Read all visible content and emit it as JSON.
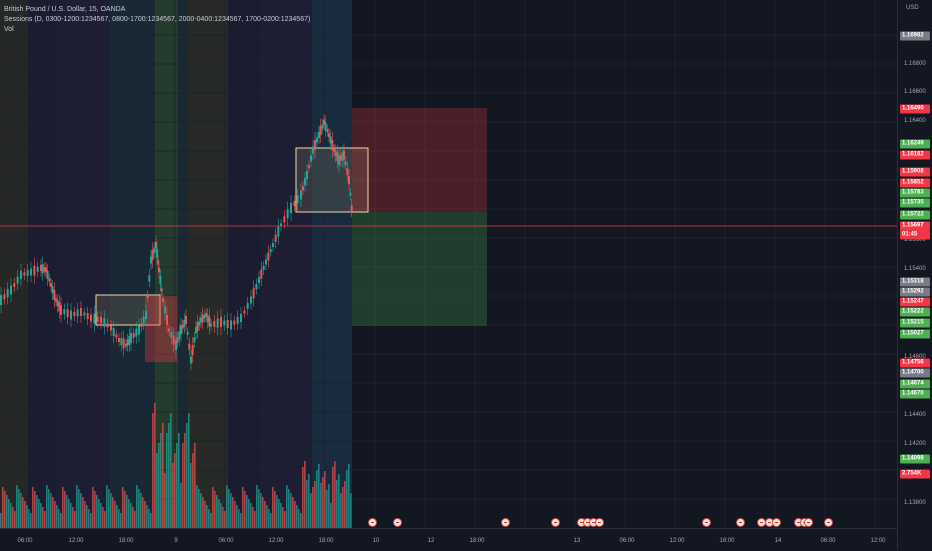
{
  "legend": {
    "line1": "British Pound / U.S. Dollar, 15, OANDA",
    "line2": "Sessions (D, 0300-1200:1234567, 0800-1700:1234567, 2000-0400:1234567, 1700-0200:1234567)",
    "line3": "Vol"
  },
  "price_axis": {
    "currency": "USD",
    "ticks": [
      "1.16800",
      "1.16600",
      "1.16400",
      "1.15600",
      "1.15400",
      "1.14800",
      "1.14400",
      "1.14200",
      "1.13800"
    ]
  },
  "badges": [
    {
      "text": "1.16982",
      "color": "#787b86"
    },
    {
      "text": "1.16490",
      "color": "#f23645"
    },
    {
      "text": "1.16249",
      "color": "#4caf50"
    },
    {
      "text": "1.16182",
      "color": "#f23645"
    },
    {
      "text": "1.15908",
      "color": "#f23645"
    },
    {
      "text": "1.15852",
      "color": "#f23645"
    },
    {
      "text": "1.15783",
      "color": "#4caf50"
    },
    {
      "text": "1.15735",
      "color": "#4caf50"
    },
    {
      "text": "1.15722",
      "color": "#4caf50"
    },
    {
      "text": "1.15697",
      "color": "#f23645"
    },
    {
      "text": "01:45",
      "color": "#f23645"
    },
    {
      "text": "1.15318",
      "color": "#787b86"
    },
    {
      "text": "1.15292",
      "color": "#787b86"
    },
    {
      "text": "1.15247",
      "color": "#f23645"
    },
    {
      "text": "1.15222",
      "color": "#4caf50"
    },
    {
      "text": "1.15215",
      "color": "#4caf50"
    },
    {
      "text": "1.15027",
      "color": "#4caf50"
    },
    {
      "text": "1.14756",
      "color": "#f23645"
    },
    {
      "text": "1.14700",
      "color": "#787b86"
    },
    {
      "text": "1.14674",
      "color": "#4caf50"
    },
    {
      "text": "1.14670",
      "color": "#4caf50"
    },
    {
      "text": "1.14098",
      "color": "#4caf50"
    },
    {
      "text": "2.754K",
      "color": "#f23645"
    }
  ],
  "time_axis": {
    "labels": [
      "06:00",
      "12:00",
      "18:00",
      "9",
      "06:00",
      "12:00",
      "18:00",
      "10",
      "12",
      "18:00",
      "13",
      "06:00",
      "12:00",
      "18:00",
      "14",
      "06:00",
      "12:00"
    ]
  },
  "event_icon_count": 19,
  "colors": {
    "background": "#131722",
    "up": "#26a69a",
    "down": "#ef5350",
    "current_price_line": "#f23645"
  }
}
